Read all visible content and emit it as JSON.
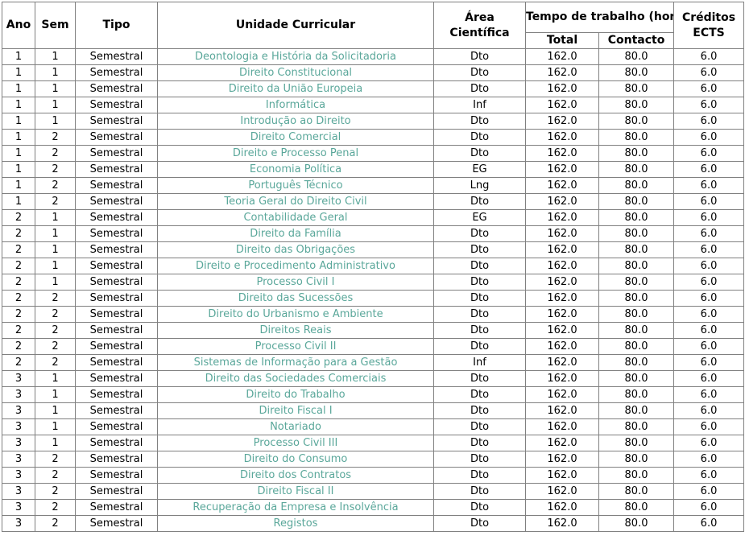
{
  "colors": {
    "link": "#5aa79a",
    "border": "#808080"
  },
  "headers": {
    "ano": "Ano",
    "sem": "Sem",
    "tipo": "Tipo",
    "unidade": "Unidade Curricular",
    "area": "Área Científica",
    "tempo": "Tempo de trabalho (horas)",
    "total": "Total",
    "contacto": "Contacto",
    "creditos": "Créditos ECTS"
  },
  "rows": [
    {
      "ano": "1",
      "sem": "1",
      "tipo": "Semestral",
      "unidade": "Deontologia e História da Solicitadoria",
      "area": "Dto",
      "total": "162.0",
      "contacto": "80.0",
      "ects": "6.0"
    },
    {
      "ano": "1",
      "sem": "1",
      "tipo": "Semestral",
      "unidade": "Direito Constitucional",
      "area": "Dto",
      "total": "162.0",
      "contacto": "80.0",
      "ects": "6.0"
    },
    {
      "ano": "1",
      "sem": "1",
      "tipo": "Semestral",
      "unidade": "Direito da União Europeia",
      "area": "Dto",
      "total": "162.0",
      "contacto": "80.0",
      "ects": "6.0"
    },
    {
      "ano": "1",
      "sem": "1",
      "tipo": "Semestral",
      "unidade": "Informática",
      "area": "Inf",
      "total": "162.0",
      "contacto": "80.0",
      "ects": "6.0"
    },
    {
      "ano": "1",
      "sem": "1",
      "tipo": "Semestral",
      "unidade": "Introdução ao Direito",
      "area": "Dto",
      "total": "162.0",
      "contacto": "80.0",
      "ects": "6.0"
    },
    {
      "ano": "1",
      "sem": "2",
      "tipo": "Semestral",
      "unidade": "Direito Comercial",
      "area": "Dto",
      "total": "162.0",
      "contacto": "80.0",
      "ects": "6.0"
    },
    {
      "ano": "1",
      "sem": "2",
      "tipo": "Semestral",
      "unidade": "Direito e Processo Penal",
      "area": "Dto",
      "total": "162.0",
      "contacto": "80.0",
      "ects": "6.0"
    },
    {
      "ano": "1",
      "sem": "2",
      "tipo": "Semestral",
      "unidade": "Economia Política",
      "area": "EG",
      "total": "162.0",
      "contacto": "80.0",
      "ects": "6.0"
    },
    {
      "ano": "1",
      "sem": "2",
      "tipo": "Semestral",
      "unidade": "Português Técnico",
      "area": "Lng",
      "total": "162.0",
      "contacto": "80.0",
      "ects": "6.0"
    },
    {
      "ano": "1",
      "sem": "2",
      "tipo": "Semestral",
      "unidade": "Teoria Geral do Direito Civil",
      "area": "Dto",
      "total": "162.0",
      "contacto": "80.0",
      "ects": "6.0"
    },
    {
      "ano": "2",
      "sem": "1",
      "tipo": "Semestral",
      "unidade": "Contabilidade Geral",
      "area": "EG",
      "total": "162.0",
      "contacto": "80.0",
      "ects": "6.0"
    },
    {
      "ano": "2",
      "sem": "1",
      "tipo": "Semestral",
      "unidade": "Direito da Família",
      "area": "Dto",
      "total": "162.0",
      "contacto": "80.0",
      "ects": "6.0"
    },
    {
      "ano": "2",
      "sem": "1",
      "tipo": "Semestral",
      "unidade": "Direito das Obrigações",
      "area": "Dto",
      "total": "162.0",
      "contacto": "80.0",
      "ects": "6.0"
    },
    {
      "ano": "2",
      "sem": "1",
      "tipo": "Semestral",
      "unidade": "Direito e Procedimento Administrativo",
      "area": "Dto",
      "total": "162.0",
      "contacto": "80.0",
      "ects": "6.0"
    },
    {
      "ano": "2",
      "sem": "1",
      "tipo": "Semestral",
      "unidade": "Processo Civil I",
      "area": "Dto",
      "total": "162.0",
      "contacto": "80.0",
      "ects": "6.0"
    },
    {
      "ano": "2",
      "sem": "2",
      "tipo": "Semestral",
      "unidade": "Direito das Sucessões",
      "area": "Dto",
      "total": "162.0",
      "contacto": "80.0",
      "ects": "6.0"
    },
    {
      "ano": "2",
      "sem": "2",
      "tipo": "Semestral",
      "unidade": "Direito do Urbanismo e Ambiente",
      "area": "Dto",
      "total": "162.0",
      "contacto": "80.0",
      "ects": "6.0"
    },
    {
      "ano": "2",
      "sem": "2",
      "tipo": "Semestral",
      "unidade": "Direitos Reais",
      "area": "Dto",
      "total": "162.0",
      "contacto": "80.0",
      "ects": "6.0"
    },
    {
      "ano": "2",
      "sem": "2",
      "tipo": "Semestral",
      "unidade": "Processo Civil II",
      "area": "Dto",
      "total": "162.0",
      "contacto": "80.0",
      "ects": "6.0"
    },
    {
      "ano": "2",
      "sem": "2",
      "tipo": "Semestral",
      "unidade": "Sistemas de Informação para a Gestão",
      "area": "Inf",
      "total": "162.0",
      "contacto": "80.0",
      "ects": "6.0"
    },
    {
      "ano": "3",
      "sem": "1",
      "tipo": "Semestral",
      "unidade": "Direito das Sociedades Comerciais",
      "area": "Dto",
      "total": "162.0",
      "contacto": "80.0",
      "ects": "6.0"
    },
    {
      "ano": "3",
      "sem": "1",
      "tipo": "Semestral",
      "unidade": "Direito do Trabalho",
      "area": "Dto",
      "total": "162.0",
      "contacto": "80.0",
      "ects": "6.0"
    },
    {
      "ano": "3",
      "sem": "1",
      "tipo": "Semestral",
      "unidade": "Direito Fiscal I",
      "area": "Dto",
      "total": "162.0",
      "contacto": "80.0",
      "ects": "6.0"
    },
    {
      "ano": "3",
      "sem": "1",
      "tipo": "Semestral",
      "unidade": "Notariado",
      "area": "Dto",
      "total": "162.0",
      "contacto": "80.0",
      "ects": "6.0"
    },
    {
      "ano": "3",
      "sem": "1",
      "tipo": "Semestral",
      "unidade": "Processo Civil III",
      "area": "Dto",
      "total": "162.0",
      "contacto": "80.0",
      "ects": "6.0"
    },
    {
      "ano": "3",
      "sem": "2",
      "tipo": "Semestral",
      "unidade": "Direito do Consumo",
      "area": "Dto",
      "total": "162.0",
      "contacto": "80.0",
      "ects": "6.0"
    },
    {
      "ano": "3",
      "sem": "2",
      "tipo": "Semestral",
      "unidade": "Direito dos Contratos",
      "area": "Dto",
      "total": "162.0",
      "contacto": "80.0",
      "ects": "6.0"
    },
    {
      "ano": "3",
      "sem": "2",
      "tipo": "Semestral",
      "unidade": "Direito Fiscal II",
      "area": "Dto",
      "total": "162.0",
      "contacto": "80.0",
      "ects": "6.0"
    },
    {
      "ano": "3",
      "sem": "2",
      "tipo": "Semestral",
      "unidade": "Recuperação da Empresa e Insolvência",
      "area": "Dto",
      "total": "162.0",
      "contacto": "80.0",
      "ects": "6.0"
    },
    {
      "ano": "3",
      "sem": "2",
      "tipo": "Semestral",
      "unidade": "Registos",
      "area": "Dto",
      "total": "162.0",
      "contacto": "80.0",
      "ects": "6.0"
    }
  ]
}
